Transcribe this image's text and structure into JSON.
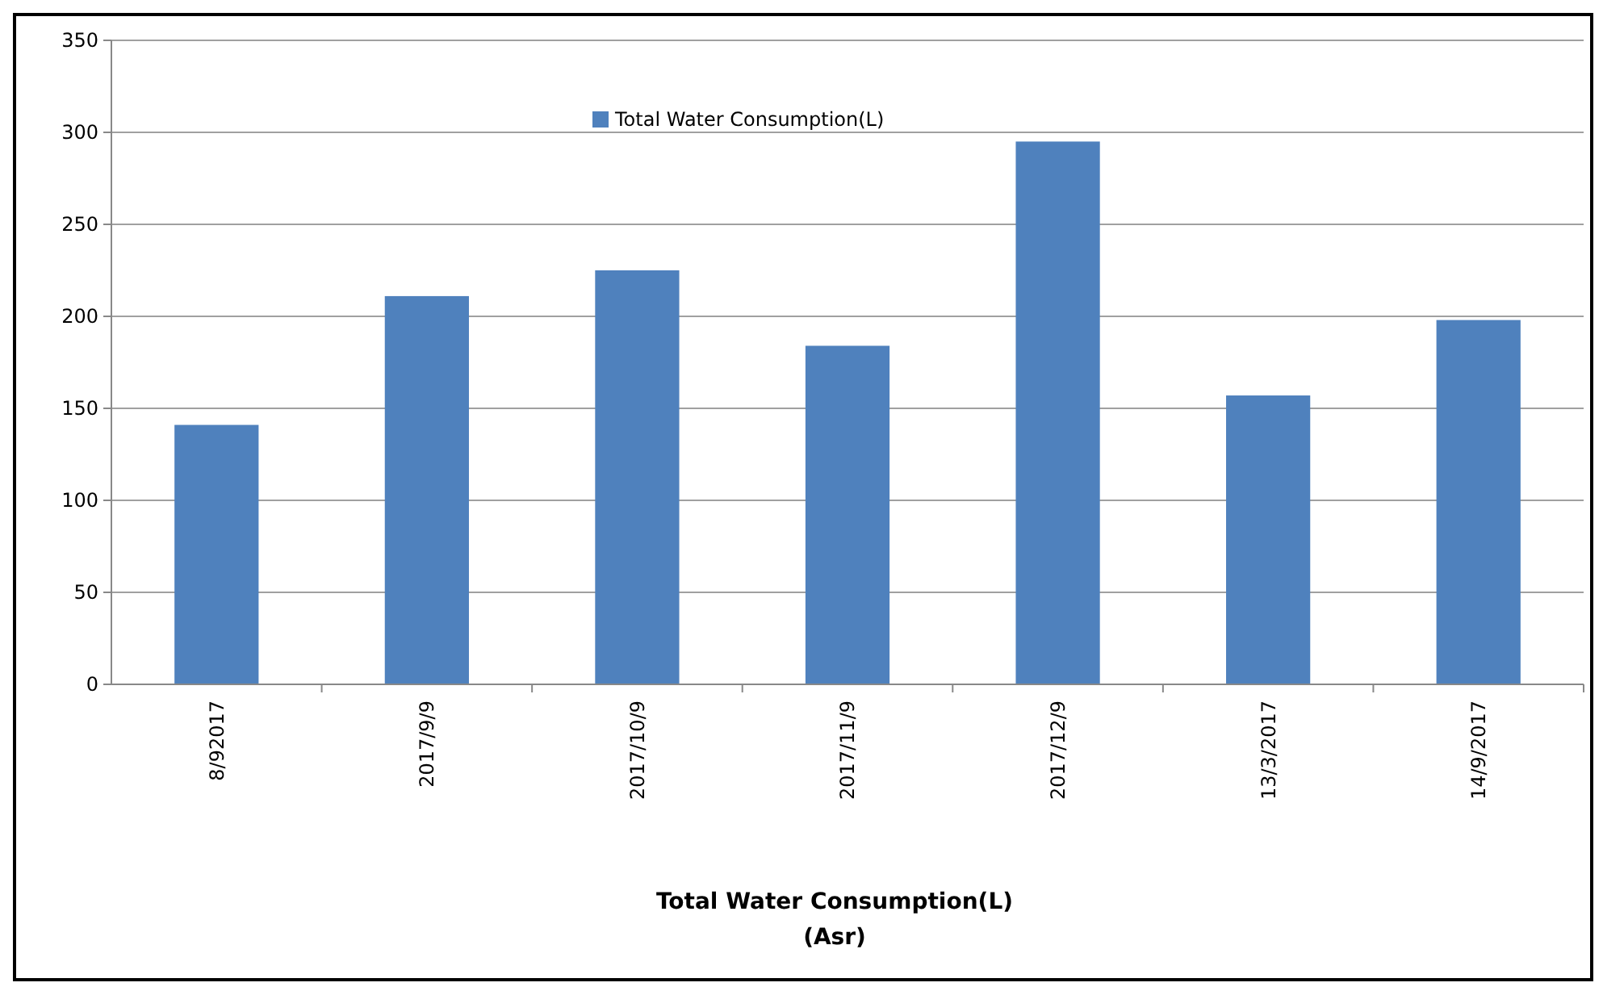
{
  "chart_data": {
    "type": "bar",
    "xlabel": "Total Water Consumption(L)\n(Asr)",
    "categories": [
      "8/92017",
      "2017/9/9",
      "2017/10/9",
      "2017/11/9",
      "2017/12/9",
      "13/3/2017",
      "14/9/2017"
    ],
    "series": [
      {
        "name": "Total Water Consumption(L)",
        "color": "#4f81bd",
        "values": [
          141,
          211,
          225,
          184,
          295,
          157,
          198
        ]
      }
    ],
    "ylim": [
      0,
      350
    ],
    "yticks": [
      0,
      50,
      100,
      150,
      200,
      250,
      300,
      350
    ],
    "grid": "y",
    "legend": "top"
  }
}
